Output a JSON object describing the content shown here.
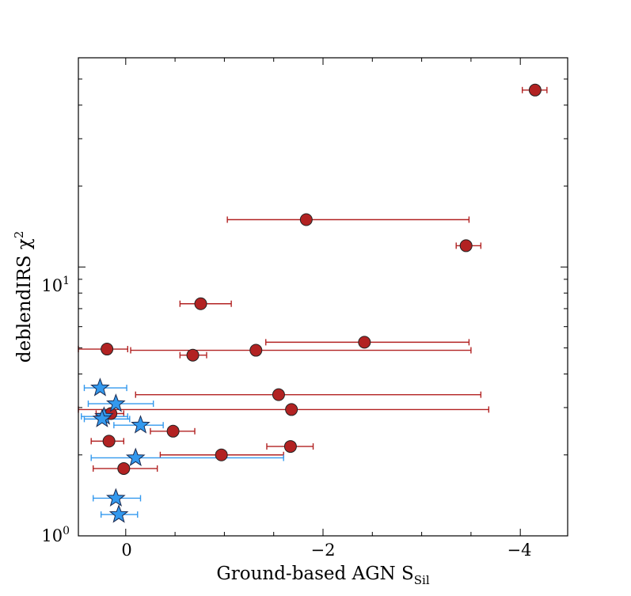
{
  "chart_data": {
    "type": "scatter",
    "xlabel": "Ground-based AGN S",
    "xlabel_sub": "Sil",
    "ylabel": "deblendIRS χ",
    "ylabel_sup": "2",
    "x_axis_reversed": true,
    "xlim": [
      0.48,
      -4.48
    ],
    "ylim": [
      1.0,
      60.0
    ],
    "y_scale": "log",
    "x_ticks": [
      {
        "value": 0,
        "label": "0"
      },
      {
        "value": -2,
        "label": "−2"
      },
      {
        "value": -4,
        "label": "−4"
      }
    ],
    "y_ticks": [
      {
        "value": 1,
        "label": "10",
        "sup": "0"
      },
      {
        "value": 10,
        "label": "10",
        "sup": "1"
      }
    ],
    "series": [
      {
        "marker": "circle",
        "color": "#b22222",
        "points": [
          {
            "x": -4.15,
            "y": 45.5,
            "xerr_lo": -4.02,
            "xerr_hi": -4.27
          },
          {
            "x": -1.83,
            "y": 15.0,
            "xerr_lo": -1.03,
            "xerr_hi": -3.48
          },
          {
            "x": -3.45,
            "y": 12.0,
            "xerr_lo": -3.35,
            "xerr_hi": -3.6
          },
          {
            "x": -0.76,
            "y": 7.3,
            "xerr_lo": -0.55,
            "xerr_hi": -1.07
          },
          {
            "x": -2.42,
            "y": 5.25,
            "xerr_lo": -1.42,
            "xerr_hi": -3.48
          },
          {
            "x": 0.19,
            "y": 4.95,
            "xerr_lo": 0.48,
            "xerr_hi": -0.02
          },
          {
            "x": -1.32,
            "y": 4.9,
            "xerr_lo": -0.05,
            "xerr_hi": -3.5
          },
          {
            "x": -0.68,
            "y": 4.7,
            "xerr_lo": -0.55,
            "xerr_hi": -0.82
          },
          {
            "x": -1.55,
            "y": 3.35,
            "xerr_lo": -0.1,
            "xerr_hi": -3.6
          },
          {
            "x": -1.68,
            "y": 2.95,
            "xerr_lo": 0.48,
            "xerr_hi": -3.68
          },
          {
            "x": 0.15,
            "y": 2.85,
            "xerr_lo": 0.3,
            "xerr_hi": 0.02
          },
          {
            "x": -0.48,
            "y": 2.45,
            "xerr_lo": -0.25,
            "xerr_hi": -0.7
          },
          {
            "x": 0.17,
            "y": 2.25,
            "xerr_lo": 0.35,
            "xerr_hi": 0.02
          },
          {
            "x": -1.67,
            "y": 2.15,
            "xerr_lo": -1.43,
            "xerr_hi": -1.9
          },
          {
            "x": -0.97,
            "y": 2.0,
            "xerr_lo": -0.35,
            "xerr_hi": -1.6
          },
          {
            "x": 0.02,
            "y": 1.78,
            "xerr_lo": 0.33,
            "xerr_hi": -0.32
          }
        ]
      },
      {
        "marker": "star",
        "color": "#3399ee",
        "points": [
          {
            "x": 0.26,
            "y": 3.55,
            "xerr_lo": 0.42,
            "xerr_hi": -0.01
          },
          {
            "x": 0.1,
            "y": 3.1,
            "xerr_lo": 0.38,
            "xerr_hi": -0.28
          },
          {
            "x": 0.22,
            "y": 2.78,
            "xerr_lo": 0.45,
            "xerr_hi": -0.02
          },
          {
            "x": 0.24,
            "y": 2.72,
            "xerr_lo": 0.42,
            "xerr_hi": -0.04
          },
          {
            "x": -0.15,
            "y": 2.58,
            "xerr_lo": 0.12,
            "xerr_hi": -0.38
          },
          {
            "x": -0.1,
            "y": 1.95,
            "xerr_lo": 0.35,
            "xerr_hi": -1.6
          },
          {
            "x": 0.1,
            "y": 1.38,
            "xerr_lo": 0.33,
            "xerr_hi": -0.15
          },
          {
            "x": 0.07,
            "y": 1.2,
            "xerr_lo": 0.25,
            "xerr_hi": -0.12
          }
        ]
      }
    ]
  }
}
